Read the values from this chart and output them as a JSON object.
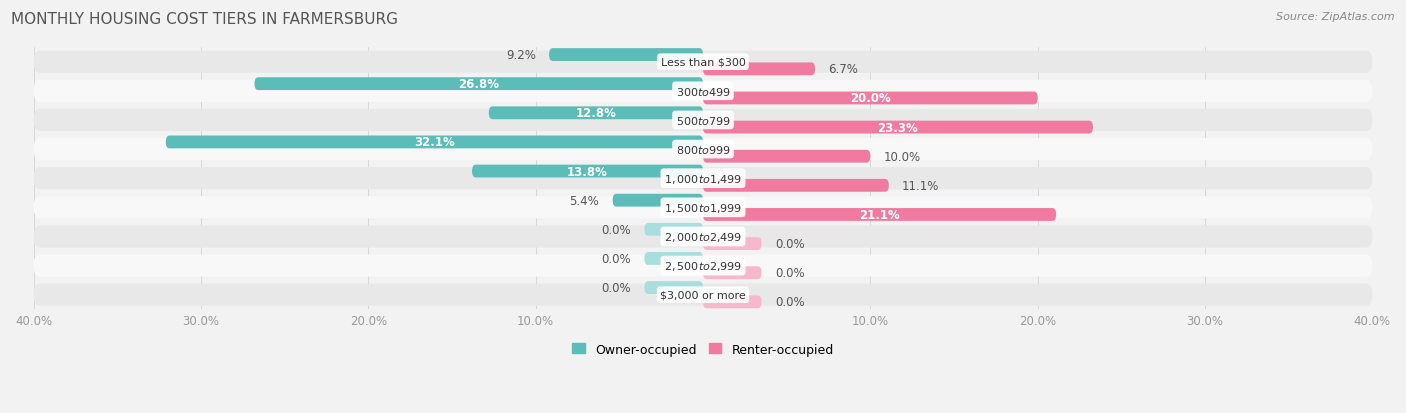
{
  "title": "MONTHLY HOUSING COST TIERS IN FARMERSBURG",
  "source": "Source: ZipAtlas.com",
  "categories": [
    "Less than $300",
    "$300 to $499",
    "$500 to $799",
    "$800 to $999",
    "$1,000 to $1,499",
    "$1,500 to $1,999",
    "$2,000 to $2,499",
    "$2,500 to $2,999",
    "$3,000 or more"
  ],
  "owner_values": [
    9.2,
    26.8,
    12.8,
    32.1,
    13.8,
    5.4,
    0.0,
    0.0,
    0.0
  ],
  "renter_values": [
    6.7,
    20.0,
    23.3,
    10.0,
    11.1,
    21.1,
    0.0,
    0.0,
    0.0
  ],
  "owner_color": "#5bbcb8",
  "renter_color": "#f07aA0",
  "owner_color_zero": "#a8dedd",
  "renter_color_zero": "#f8b8cc",
  "axis_max": 40.0,
  "background_color": "#f2f2f2",
  "row_bg_odd": "#e8e8e8",
  "row_bg_even": "#f8f8f8",
  "row_pill_color": "#e0e0e0",
  "label_color_dark": "#555555",
  "label_color_white": "#ffffff",
  "title_fontsize": 11,
  "source_fontsize": 8,
  "label_fontsize": 8.5,
  "category_fontsize": 8,
  "legend_fontsize": 9,
  "axis_label_fontsize": 8.5,
  "white_label_threshold": 12.0
}
